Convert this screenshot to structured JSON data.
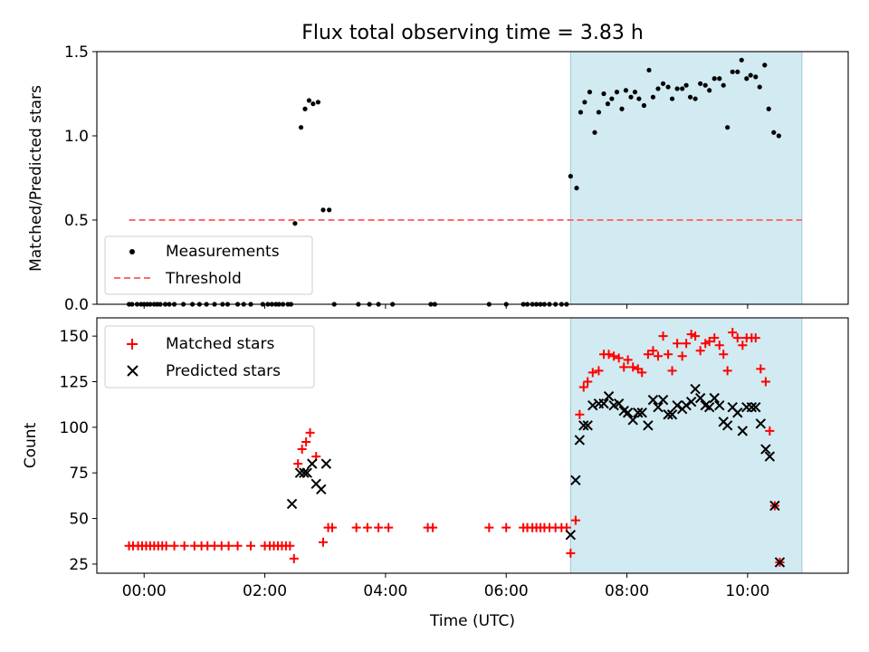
{
  "chart_data": [
    {
      "type": "scatter",
      "title": "Flux total observing time = 3.83 h",
      "xlabel": "",
      "ylabel": "Matched/Predicted stars",
      "xlim": [
        "23:13",
        "11:40"
      ],
      "ylim": [
        0,
        1.5
      ],
      "yticks": [
        0.0,
        0.5,
        1.0,
        1.5
      ],
      "ytick_labels": [
        "0.0",
        "0.5",
        "1.0",
        "1.5"
      ],
      "grid": false,
      "legend": "lower-left",
      "highlight_span": {
        "x": [
          "07:04",
          "10:54"
        ],
        "color": "#add8e6"
      },
      "threshold": {
        "name": "Threshold",
        "value": 0.5,
        "x": [
          "23:45",
          "10:54"
        ],
        "color": "#ff6b6b",
        "style": "dashed"
      },
      "series": [
        {
          "name": "Measurements",
          "color": "#000000",
          "marker": "dot",
          "points": [
            [
              "23:45",
              0
            ],
            [
              "23:48",
              0
            ],
            [
              "23:53",
              0
            ],
            [
              "23:57",
              0
            ],
            [
              "00:00",
              0
            ],
            [
              "00:03",
              0
            ],
            [
              "00:06",
              0
            ],
            [
              "00:10",
              0
            ],
            [
              "00:13",
              0
            ],
            [
              "00:16",
              0
            ],
            [
              "00:21",
              0
            ],
            [
              "00:25",
              0
            ],
            [
              "00:30",
              0
            ],
            [
              "00:39",
              0
            ],
            [
              "00:48",
              0
            ],
            [
              "00:55",
              0
            ],
            [
              "01:02",
              0
            ],
            [
              "01:10",
              0
            ],
            [
              "01:18",
              0
            ],
            [
              "01:23",
              0
            ],
            [
              "01:33",
              0
            ],
            [
              "01:39",
              0
            ],
            [
              "01:46",
              0
            ],
            [
              "01:58",
              0
            ],
            [
              "02:03",
              0
            ],
            [
              "02:07",
              0
            ],
            [
              "02:11",
              0
            ],
            [
              "02:14",
              0
            ],
            [
              "02:18",
              0
            ],
            [
              "02:23",
              0
            ],
            [
              "02:26",
              0
            ],
            [
              "02:30",
              0.48
            ],
            [
              "02:36",
              1.05
            ],
            [
              "02:40",
              1.16
            ],
            [
              "02:44",
              1.21
            ],
            [
              "02:48",
              1.19
            ],
            [
              "02:53",
              1.2
            ],
            [
              "02:58",
              0.56
            ],
            [
              "03:04",
              0.56
            ],
            [
              "03:09",
              0
            ],
            [
              "03:33",
              0
            ],
            [
              "03:44",
              0
            ],
            [
              "03:53",
              0
            ],
            [
              "04:07",
              0
            ],
            [
              "04:45",
              0
            ],
            [
              "04:49",
              0
            ],
            [
              "05:43",
              0
            ],
            [
              "06:00",
              0
            ],
            [
              "06:17",
              0
            ],
            [
              "06:21",
              0
            ],
            [
              "06:26",
              0
            ],
            [
              "06:30",
              0
            ],
            [
              "06:34",
              0
            ],
            [
              "06:38",
              0
            ],
            [
              "06:43",
              0
            ],
            [
              "06:49",
              0
            ],
            [
              "06:55",
              0
            ],
            [
              "07:00",
              0
            ],
            [
              "07:04",
              0.76
            ],
            [
              "07:10",
              0.69
            ],
            [
              "07:14",
              1.14
            ],
            [
              "07:18",
              1.2
            ],
            [
              "07:23",
              1.26
            ],
            [
              "07:28",
              1.02
            ],
            [
              "07:32",
              1.14
            ],
            [
              "07:37",
              1.25
            ],
            [
              "07:41",
              1.19
            ],
            [
              "07:45",
              1.22
            ],
            [
              "07:50",
              1.26
            ],
            [
              "07:55",
              1.16
            ],
            [
              "07:59",
              1.27
            ],
            [
              "08:04",
              1.23
            ],
            [
              "08:08",
              1.26
            ],
            [
              "08:12",
              1.22
            ],
            [
              "08:17",
              1.18
            ],
            [
              "08:22",
              1.39
            ],
            [
              "08:26",
              1.23
            ],
            [
              "08:31",
              1.28
            ],
            [
              "08:36",
              1.31
            ],
            [
              "08:41",
              1.29
            ],
            [
              "08:45",
              1.22
            ],
            [
              "08:50",
              1.28
            ],
            [
              "08:55",
              1.28
            ],
            [
              "08:59",
              1.3
            ],
            [
              "09:03",
              1.23
            ],
            [
              "09:08",
              1.22
            ],
            [
              "09:13",
              1.31
            ],
            [
              "09:18",
              1.3
            ],
            [
              "09:22",
              1.27
            ],
            [
              "09:27",
              1.34
            ],
            [
              "09:32",
              1.34
            ],
            [
              "09:36",
              1.3
            ],
            [
              "09:40",
              1.05
            ],
            [
              "09:45",
              1.38
            ],
            [
              "09:50",
              1.38
            ],
            [
              "09:54",
              1.45
            ],
            [
              "09:59",
              1.34
            ],
            [
              "10:03",
              1.36
            ],
            [
              "10:08",
              1.35
            ],
            [
              "10:12",
              1.29
            ],
            [
              "10:17",
              1.42
            ],
            [
              "10:21",
              1.16
            ],
            [
              "10:26",
              1.02
            ],
            [
              "10:31",
              1.0
            ]
          ]
        }
      ]
    },
    {
      "type": "scatter",
      "title": "",
      "xlabel": "Time (UTC)",
      "ylabel": "Count",
      "xlim": [
        "23:13",
        "11:40"
      ],
      "ylim": [
        20,
        160
      ],
      "yticks": [
        25,
        50,
        75,
        100,
        125,
        150
      ],
      "ytick_labels": [
        "25",
        "50",
        "75",
        "100",
        "125",
        "150"
      ],
      "xticks": [
        "00:00",
        "02:00",
        "04:00",
        "06:00",
        "08:00",
        "10:00"
      ],
      "xtick_labels": [
        "00:00",
        "02:00",
        "04:00",
        "06:00",
        "08:00",
        "10:00"
      ],
      "grid": false,
      "legend": "upper-left",
      "highlight_span": {
        "x": [
          "07:04",
          "10:54"
        ],
        "color": "#add8e6"
      },
      "series": [
        {
          "name": "Matched stars",
          "color": "#ff0000",
          "marker": "plus",
          "points": [
            [
              "23:45",
              35
            ],
            [
              "23:49",
              35
            ],
            [
              "23:54",
              35
            ],
            [
              "23:58",
              35
            ],
            [
              "00:02",
              35
            ],
            [
              "00:06",
              35
            ],
            [
              "00:10",
              35
            ],
            [
              "00:14",
              35
            ],
            [
              "00:18",
              35
            ],
            [
              "00:22",
              35
            ],
            [
              "00:30",
              35
            ],
            [
              "00:40",
              35
            ],
            [
              "00:50",
              35
            ],
            [
              "00:57",
              35
            ],
            [
              "01:03",
              35
            ],
            [
              "01:10",
              35
            ],
            [
              "01:17",
              35
            ],
            [
              "01:24",
              35
            ],
            [
              "01:33",
              35
            ],
            [
              "01:46",
              35
            ],
            [
              "02:00",
              35
            ],
            [
              "02:05",
              35
            ],
            [
              "02:09",
              35
            ],
            [
              "02:13",
              35
            ],
            [
              "02:17",
              35
            ],
            [
              "02:21",
              35
            ],
            [
              "02:25",
              35
            ],
            [
              "02:29",
              28
            ],
            [
              "02:33",
              80
            ],
            [
              "02:37",
              88
            ],
            [
              "02:41",
              92
            ],
            [
              "02:45",
              97
            ],
            [
              "02:51",
              84
            ],
            [
              "02:58",
              37
            ],
            [
              "03:03",
              45
            ],
            [
              "03:07",
              45
            ],
            [
              "03:31",
              45
            ],
            [
              "03:42",
              45
            ],
            [
              "03:53",
              45
            ],
            [
              "04:03",
              45
            ],
            [
              "04:42",
              45
            ],
            [
              "04:47",
              45
            ],
            [
              "05:43",
              45
            ],
            [
              "06:00",
              45
            ],
            [
              "06:17",
              45
            ],
            [
              "06:21",
              45
            ],
            [
              "06:26",
              45
            ],
            [
              "06:30",
              45
            ],
            [
              "06:34",
              45
            ],
            [
              "06:38",
              45
            ],
            [
              "06:43",
              45
            ],
            [
              "06:49",
              45
            ],
            [
              "06:55",
              45
            ],
            [
              "07:00",
              45
            ],
            [
              "07:04",
              31
            ],
            [
              "07:09",
              49
            ],
            [
              "07:13",
              107
            ],
            [
              "07:17",
              122
            ],
            [
              "07:21",
              125
            ],
            [
              "07:26",
              130
            ],
            [
              "07:32",
              131
            ],
            [
              "07:37",
              140
            ],
            [
              "07:42",
              140
            ],
            [
              "07:47",
              139
            ],
            [
              "07:52",
              138
            ],
            [
              "07:57",
              133
            ],
            [
              "08:01",
              137
            ],
            [
              "08:06",
              133
            ],
            [
              "08:11",
              132
            ],
            [
              "08:15",
              130
            ],
            [
              "08:21",
              140
            ],
            [
              "08:26",
              142
            ],
            [
              "08:31",
              139
            ],
            [
              "08:36",
              150
            ],
            [
              "08:41",
              140
            ],
            [
              "08:45",
              131
            ],
            [
              "08:50",
              146
            ],
            [
              "08:55",
              139
            ],
            [
              "08:59",
              146
            ],
            [
              "09:04",
              151
            ],
            [
              "09:08",
              150
            ],
            [
              "09:13",
              142
            ],
            [
              "09:18",
              146
            ],
            [
              "09:22",
              147
            ],
            [
              "09:27",
              149
            ],
            [
              "09:32",
              145
            ],
            [
              "09:36",
              140
            ],
            [
              "09:40",
              131
            ],
            [
              "09:45",
              152
            ],
            [
              "09:50",
              149
            ],
            [
              "09:55",
              145
            ],
            [
              "09:59",
              149
            ],
            [
              "10:04",
              149
            ],
            [
              "10:08",
              149
            ],
            [
              "10:13",
              132
            ],
            [
              "10:18",
              125
            ],
            [
              "10:22",
              98
            ],
            [
              "10:27",
              57
            ],
            [
              "10:32",
              26
            ]
          ]
        },
        {
          "name": "Predicted stars",
          "color": "#000000",
          "marker": "x",
          "points": [
            [
              "02:27",
              58
            ],
            [
              "02:35",
              75
            ],
            [
              "02:39",
              75
            ],
            [
              "02:42",
              75
            ],
            [
              "02:47",
              80
            ],
            [
              "02:51",
              69
            ],
            [
              "02:56",
              66
            ],
            [
              "03:01",
              80
            ],
            [
              "07:04",
              41
            ],
            [
              "07:09",
              71
            ],
            [
              "07:13",
              93
            ],
            [
              "07:17",
              101
            ],
            [
              "07:21",
              101
            ],
            [
              "07:26",
              112
            ],
            [
              "07:32",
              113
            ],
            [
              "07:37",
              113
            ],
            [
              "07:42",
              117
            ],
            [
              "07:47",
              112
            ],
            [
              "07:52",
              113
            ],
            [
              "07:57",
              109
            ],
            [
              "08:01",
              108
            ],
            [
              "08:06",
              104
            ],
            [
              "08:11",
              108
            ],
            [
              "08:15",
              108
            ],
            [
              "08:21",
              101
            ],
            [
              "08:26",
              115
            ],
            [
              "08:31",
              111
            ],
            [
              "08:36",
              115
            ],
            [
              "08:41",
              107
            ],
            [
              "08:45",
              107
            ],
            [
              "08:50",
              112
            ],
            [
              "08:55",
              110
            ],
            [
              "08:59",
              112
            ],
            [
              "09:04",
              114
            ],
            [
              "09:08",
              121
            ],
            [
              "09:13",
              116
            ],
            [
              "09:18",
              112
            ],
            [
              "09:22",
              111
            ],
            [
              "09:27",
              116
            ],
            [
              "09:32",
              112
            ],
            [
              "09:36",
              103
            ],
            [
              "09:40",
              101
            ],
            [
              "09:45",
              111
            ],
            [
              "09:50",
              108
            ],
            [
              "09:55",
              98
            ],
            [
              "09:59",
              111
            ],
            [
              "10:04",
              111
            ],
            [
              "10:08",
              111
            ],
            [
              "10:13",
              102
            ],
            [
              "10:18",
              88
            ],
            [
              "10:22",
              84
            ],
            [
              "10:27",
              57
            ],
            [
              "10:32",
              26
            ]
          ]
        }
      ]
    }
  ]
}
